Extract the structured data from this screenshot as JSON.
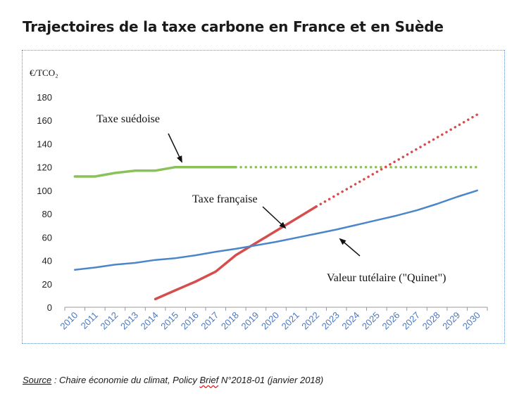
{
  "header": {
    "title": "Trajectoires de la taxe carbone en France et en Suède"
  },
  "source": {
    "label": "Source",
    "text_a": " : Chaire économie du climat, Policy ",
    "brief_word": "Brief",
    "text_b": " N°2018-01 (janvier 2018)"
  },
  "chart_data": {
    "type": "line",
    "title": "Trajectoires de la taxe carbone en France et en Suède",
    "ylabel": "€/TCO₂",
    "xlabel": "",
    "ylim": [
      0,
      180
    ],
    "yticks": [
      0,
      20,
      40,
      60,
      80,
      100,
      120,
      140,
      160,
      180
    ],
    "categories": [
      "2010",
      "2011",
      "2012",
      "2013",
      "2014",
      "2015",
      "2016",
      "2017",
      "2018",
      "2019",
      "2020",
      "2021",
      "2022",
      "2023",
      "2024",
      "2025",
      "2026",
      "2027",
      "2028",
      "2029",
      "2030"
    ],
    "grid": false,
    "legend": "none",
    "series": [
      {
        "name": "Taxe suédoise",
        "color": "#8cc158",
        "solid": {
          "x": [
            "2010",
            "2011",
            "2012",
            "2013",
            "2014",
            "2015",
            "2016",
            "2017",
            "2018"
          ],
          "y": [
            112,
            112,
            115,
            117,
            117,
            120,
            120,
            120,
            120
          ]
        },
        "dotted": {
          "x": [
            "2018",
            "2030"
          ],
          "y": [
            120,
            120
          ]
        }
      },
      {
        "name": "Taxe française",
        "color": "#d64d4d",
        "solid": {
          "x": [
            "2014",
            "2015",
            "2016",
            "2017",
            "2018",
            "2019",
            "2020",
            "2021",
            "2022"
          ],
          "y": [
            7,
            14.5,
            22,
            30.5,
            44.6,
            55,
            65.4,
            75.8,
            86.2
          ]
        },
        "dotted": {
          "x": [
            "2022",
            "2030"
          ],
          "y": [
            86.2,
            165
          ]
        }
      },
      {
        "name": "Valeur tutélaire (\"Quinet\")",
        "color": "#4a86c8",
        "solid": {
          "x": [
            "2010",
            "2011",
            "2012",
            "2013",
            "2014",
            "2015",
            "2016",
            "2017",
            "2018",
            "2019",
            "2020",
            "2021",
            "2022",
            "2023",
            "2024",
            "2025",
            "2026",
            "2027",
            "2028",
            "2029",
            "2030"
          ],
          "y": [
            32,
            34,
            36.5,
            38,
            40.5,
            42,
            44.5,
            47.5,
            50,
            53,
            56,
            59.5,
            63,
            66.5,
            70.5,
            74.5,
            78.5,
            83,
            88.5,
            94.5,
            100
          ]
        }
      }
    ],
    "annotations": [
      {
        "text": "Taxe suédoise",
        "target": {
          "x": "2015.5",
          "y": 120
        }
      },
      {
        "text": "Taxe française",
        "target": {
          "x": "2019.3",
          "y": 72
        }
      },
      {
        "text": "Valeur tutélaire (\"Quinet\")",
        "target": {
          "x": "2023.2",
          "y": 58
        }
      }
    ]
  }
}
